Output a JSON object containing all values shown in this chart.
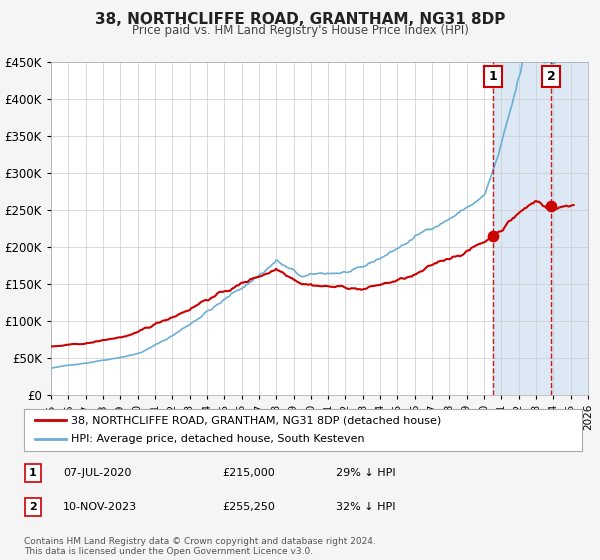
{
  "title": "38, NORTHCLIFFE ROAD, GRANTHAM, NG31 8DP",
  "subtitle": "Price paid vs. HM Land Registry's House Price Index (HPI)",
  "xlim": [
    1995,
    2026
  ],
  "ylim": [
    0,
    450000
  ],
  "yticks": [
    0,
    50000,
    100000,
    150000,
    200000,
    250000,
    300000,
    350000,
    400000,
    450000
  ],
  "ytick_labels": [
    "£0",
    "£50K",
    "£100K",
    "£150K",
    "£200K",
    "£250K",
    "£300K",
    "£350K",
    "£400K",
    "£450K"
  ],
  "hpi_color": "#6baed6",
  "price_color": "#cc0000",
  "marker_color": "#cc0000",
  "vline_color": "#cc0000",
  "shade_color": "#dce9f5",
  "t1": 2020.52,
  "t2": 2023.87,
  "price1": 215000,
  "price2": 255250,
  "legend_line1": "38, NORTHCLIFFE ROAD, GRANTHAM, NG31 8DP (detached house)",
  "legend_line2": "HPI: Average price, detached house, South Kesteven",
  "table_row1_num": "1",
  "table_row1_date": "07-JUL-2020",
  "table_row1_price": "£215,000",
  "table_row1_hpi": "29% ↓ HPI",
  "table_row2_num": "2",
  "table_row2_date": "10-NOV-2023",
  "table_row2_price": "£255,250",
  "table_row2_hpi": "32% ↓ HPI",
  "footnote1": "Contains HM Land Registry data © Crown copyright and database right 2024.",
  "footnote2": "This data is licensed under the Open Government Licence v3.0.",
  "background_color": "#f5f5f5",
  "plot_bg_color": "#ffffff"
}
